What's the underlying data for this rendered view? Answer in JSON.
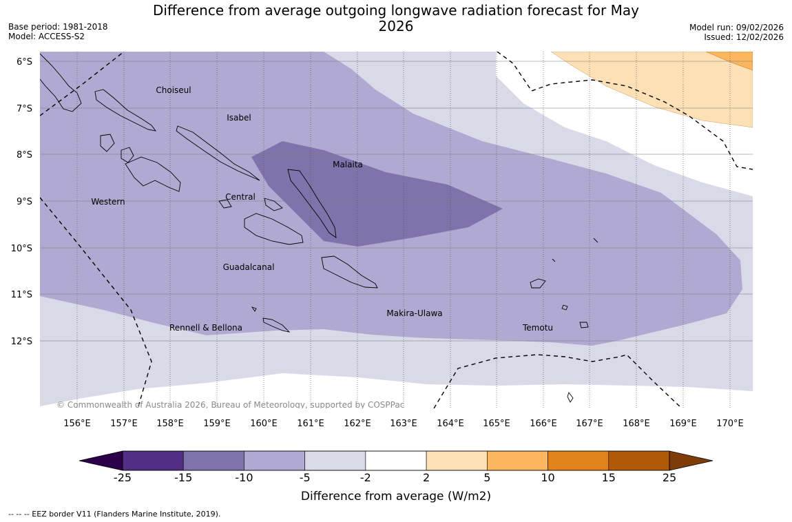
{
  "title": "Difference from average outgoing longwave radiation forecast for May 2026",
  "meta": {
    "base_period": "Base period: 1981-2018",
    "model": "Model: ACCESS-S2",
    "model_run": "Model run: 09/02/2026",
    "issued": "Issued: 12/02/2026"
  },
  "map": {
    "lat_labels": [
      "6°S",
      "7°S",
      "8°S",
      "9°S",
      "10°S",
      "11°S",
      "12°S"
    ],
    "lon_labels": [
      "156°E",
      "157°E",
      "158°E",
      "159°E",
      "160°E",
      "161°E",
      "162°E",
      "163°E",
      "164°E",
      "165°E",
      "166°E",
      "167°E",
      "168°E",
      "169°E",
      "170°E"
    ],
    "regions": [
      "Choiseul",
      "Isabel",
      "Malaita",
      "Western",
      "Central",
      "Guadalcanal",
      "Makira-Ulawa",
      "Temotu",
      "Rennell & Bellona"
    ],
    "copyright": "© Commonwealth of Australia 2026, Bureau of Meteorology, supported by COSPPac"
  },
  "colorbar": {
    "title": "Difference from average (W/m2)",
    "ticks": [
      "-25",
      "-15",
      "-10",
      "-5",
      "-2",
      "2",
      "5",
      "10",
      "15",
      "25"
    ],
    "colors": [
      "#512d84",
      "#8073ab",
      "#b0a9d1",
      "#d9d9e8",
      "#ffffff",
      "#fde0b6",
      "#fcb660",
      "#e2831a",
      "#b25907"
    ],
    "extend_low_color": "#2d004b",
    "extend_high_color": "#7f3b08"
  },
  "footer": {
    "legend": "--  --  -- EEZ border V11 (Flanders Marine Institute, 2019)."
  }
}
